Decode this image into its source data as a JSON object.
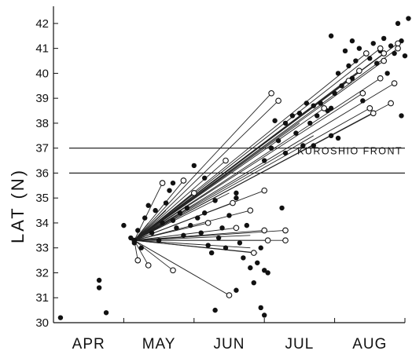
{
  "chart_data": {
    "type": "scatter",
    "ylabel": "LAT (N)",
    "xlabel": "",
    "x_tick_labels": [
      "APR",
      "MAY",
      "JUN",
      "JUL",
      "AUG"
    ],
    "y_ticks": [
      30,
      31,
      32,
      33,
      34,
      35,
      36,
      37,
      38,
      39,
      40,
      41,
      42
    ],
    "ylim": [
      30,
      42.5
    ],
    "xlim": [
      0,
      5
    ],
    "x_unit_note": "x measured in months from start of APR",
    "grid": false,
    "reference_lines": [
      {
        "y": 37.0,
        "label": ""
      },
      {
        "y": 36.0,
        "label": "KUROSHIO FRONT"
      }
    ],
    "origin": {
      "x": 1.15,
      "y": 33.3
    },
    "tracks": [
      [
        3.1,
        39.2
      ],
      [
        3.2,
        38.9
      ],
      [
        2.45,
        36.5
      ],
      [
        4.2,
        39.7
      ],
      [
        4.35,
        40.1
      ],
      [
        4.45,
        40.8
      ],
      [
        4.65,
        41.0
      ],
      [
        4.9,
        41.0
      ],
      [
        4.9,
        41.2
      ],
      [
        4.7,
        40.8
      ],
      [
        4.4,
        39.2
      ],
      [
        4.5,
        38.6
      ],
      [
        4.55,
        38.4
      ],
      [
        4.7,
        40.5
      ],
      [
        4.65,
        39.8
      ],
      [
        4.85,
        39.6
      ],
      [
        4.8,
        38.8
      ],
      [
        3.7,
        37.5
      ],
      [
        3.85,
        38.6
      ],
      [
        3.5,
        38.0
      ],
      [
        2.0,
        35.2
      ],
      [
        1.85,
        35.7
      ],
      [
        1.7,
        34.3
      ],
      [
        2.2,
        34.0
      ],
      [
        2.55,
        34.8
      ],
      [
        2.8,
        34.5
      ],
      [
        2.5,
        35.2
      ],
      [
        3.0,
        35.3
      ],
      [
        2.6,
        33.8
      ],
      [
        2.8,
        33.5
      ],
      [
        3.05,
        33.3
      ],
      [
        3.0,
        33.7
      ],
      [
        3.3,
        33.7
      ],
      [
        3.3,
        33.3
      ],
      [
        2.85,
        32.8
      ],
      [
        2.8,
        33.0
      ],
      [
        2.5,
        31.1
      ],
      [
        1.7,
        32.1
      ],
      [
        1.35,
        32.3
      ],
      [
        1.2,
        32.5
      ],
      [
        1.35,
        34.0
      ],
      [
        1.55,
        35.6
      ],
      [
        1.6,
        34.5
      ],
      [
        2.9,
        32.8
      ]
    ],
    "open_points": [
      [
        3.1,
        39.2
      ],
      [
        3.2,
        38.9
      ],
      [
        2.45,
        36.5
      ],
      [
        4.2,
        39.7
      ],
      [
        4.35,
        40.1
      ],
      [
        4.45,
        40.8
      ],
      [
        4.65,
        41.0
      ],
      [
        4.9,
        41.0
      ],
      [
        4.9,
        41.2
      ],
      [
        4.7,
        40.8
      ],
      [
        4.4,
        39.2
      ],
      [
        4.5,
        38.6
      ],
      [
        4.55,
        38.4
      ],
      [
        4.7,
        40.5
      ],
      [
        4.65,
        39.8
      ],
      [
        4.85,
        39.6
      ],
      [
        4.8,
        38.8
      ],
      [
        3.85,
        38.6
      ],
      [
        2.0,
        35.2
      ],
      [
        1.85,
        35.7
      ],
      [
        2.2,
        34.0
      ],
      [
        2.55,
        34.8
      ],
      [
        2.8,
        34.5
      ],
      [
        3.0,
        35.3
      ],
      [
        2.6,
        33.8
      ],
      [
        3.05,
        33.3
      ],
      [
        3.0,
        33.7
      ],
      [
        3.3,
        33.7
      ],
      [
        3.3,
        33.3
      ],
      [
        2.85,
        32.8
      ],
      [
        2.5,
        31.1
      ],
      [
        1.7,
        32.1
      ],
      [
        1.35,
        32.3
      ],
      [
        1.2,
        32.5
      ],
      [
        1.55,
        35.6
      ]
    ],
    "filled_points": [
      [
        0.1,
        30.2
      ],
      [
        0.65,
        31.7
      ],
      [
        0.65,
        31.4
      ],
      [
        0.75,
        30.4
      ],
      [
        1.0,
        33.9
      ],
      [
        1.1,
        33.4
      ],
      [
        1.15,
        33.2
      ],
      [
        1.2,
        33.7
      ],
      [
        1.25,
        33.0
      ],
      [
        1.3,
        34.2
      ],
      [
        1.35,
        34.7
      ],
      [
        1.4,
        33.6
      ],
      [
        1.45,
        34.5
      ],
      [
        1.5,
        33.3
      ],
      [
        1.55,
        34.0
      ],
      [
        1.6,
        34.8
      ],
      [
        1.65,
        35.3
      ],
      [
        1.7,
        34.1
      ],
      [
        1.75,
        33.8
      ],
      [
        1.8,
        34.4
      ],
      [
        1.85,
        33.5
      ],
      [
        1.9,
        34.6
      ],
      [
        1.95,
        33.9
      ],
      [
        2.05,
        34.2
      ],
      [
        2.1,
        33.6
      ],
      [
        2.15,
        34.4
      ],
      [
        2.2,
        33.1
      ],
      [
        2.25,
        32.8
      ],
      [
        2.3,
        34.9
      ],
      [
        2.35,
        33.4
      ],
      [
        2.4,
        33.8
      ],
      [
        2.45,
        33.0
      ],
      [
        2.5,
        34.3
      ],
      [
        2.6,
        35.0
      ],
      [
        2.65,
        33.2
      ],
      [
        2.7,
        32.6
      ],
      [
        2.75,
        33.9
      ],
      [
        2.8,
        32.2
      ],
      [
        2.85,
        31.6
      ],
      [
        2.9,
        32.4
      ],
      [
        2.95,
        33.0
      ],
      [
        3.0,
        32.1
      ],
      [
        3.05,
        32.0
      ],
      [
        2.95,
        30.6
      ],
      [
        3.0,
        30.3
      ],
      [
        2.3,
        30.5
      ],
      [
        2.6,
        31.3
      ],
      [
        1.7,
        35.6
      ],
      [
        2.0,
        36.3
      ],
      [
        2.15,
        35.8
      ],
      [
        2.6,
        35.2
      ],
      [
        3.25,
        34.6
      ],
      [
        3.0,
        36.5
      ],
      [
        3.1,
        37.0
      ],
      [
        3.2,
        37.3
      ],
      [
        3.3,
        36.8
      ],
      [
        3.15,
        38.1
      ],
      [
        3.3,
        38.0
      ],
      [
        3.4,
        38.3
      ],
      [
        3.45,
        37.6
      ],
      [
        3.5,
        38.4
      ],
      [
        3.55,
        37.1
      ],
      [
        3.6,
        38.8
      ],
      [
        3.65,
        38.0
      ],
      [
        3.7,
        38.7
      ],
      [
        3.75,
        38.3
      ],
      [
        3.8,
        38.8
      ],
      [
        3.9,
        38.5
      ],
      [
        3.95,
        37.5
      ],
      [
        4.0,
        39.2
      ],
      [
        4.05,
        40.0
      ],
      [
        4.1,
        39.5
      ],
      [
        4.15,
        40.9
      ],
      [
        4.2,
        40.3
      ],
      [
        4.25,
        41.3
      ],
      [
        4.3,
        40.5
      ],
      [
        4.35,
        41.0
      ],
      [
        4.5,
        40.6
      ],
      [
        4.55,
        41.2
      ],
      [
        4.6,
        40.4
      ],
      [
        4.65,
        40.9
      ],
      [
        4.7,
        41.4
      ],
      [
        4.75,
        40.0
      ],
      [
        4.8,
        41.1
      ],
      [
        4.85,
        40.8
      ],
      [
        4.9,
        42.0
      ],
      [
        4.95,
        41.3
      ],
      [
        5.0,
        40.7
      ],
      [
        4.95,
        38.3
      ],
      [
        5.05,
        42.2
      ],
      [
        3.95,
        41.5
      ],
      [
        4.05,
        37.4
      ],
      [
        4.25,
        39.8
      ],
      [
        4.4,
        38.9
      ],
      [
        3.7,
        37.1
      ],
      [
        3.95,
        38.6
      ]
    ]
  }
}
